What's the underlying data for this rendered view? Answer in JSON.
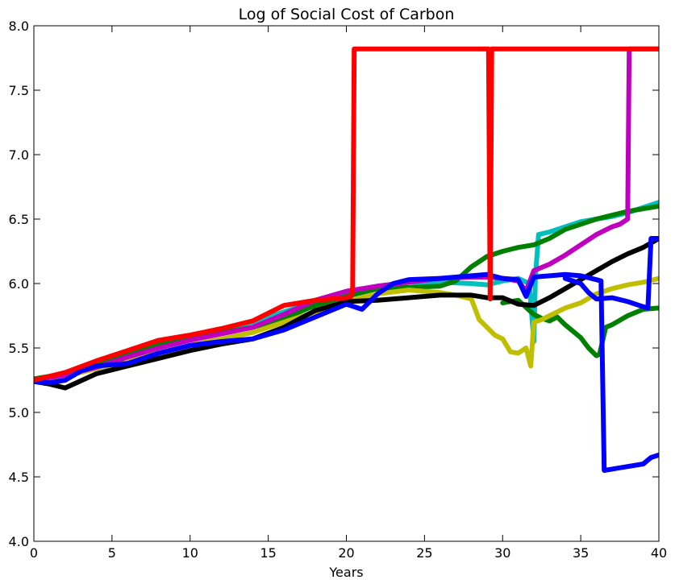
{
  "chart_data": {
    "type": "line",
    "title": "Log of Social Cost of Carbon",
    "xlabel": "Years",
    "ylabel": "",
    "xlim": [
      0,
      40
    ],
    "ylim": [
      4.0,
      8.0
    ],
    "xticks": [
      "0",
      "5",
      "10",
      "15",
      "20",
      "25",
      "30",
      "35",
      "40"
    ],
    "yticks": [
      "4.0",
      "4.5",
      "5.0",
      "5.5",
      "6.0",
      "6.5",
      "7.0",
      "7.5",
      "8.0"
    ],
    "grid": false,
    "series": [
      {
        "color": "#00bfbf",
        "x": [
          0,
          2,
          4,
          6,
          8,
          10,
          12,
          14,
          16,
          18,
          20,
          22,
          24,
          26,
          28,
          29,
          30,
          31,
          31.7,
          32.0,
          32.1,
          32.3,
          33,
          34,
          35,
          36,
          37,
          38,
          39,
          40
        ],
        "y": [
          5.25,
          5.29,
          5.36,
          5.44,
          5.52,
          5.58,
          5.64,
          5.7,
          5.78,
          5.86,
          5.92,
          5.98,
          6.01,
          6.01,
          6.0,
          5.99,
          6.02,
          6.04,
          6.0,
          5.55,
          6.05,
          6.38,
          6.4,
          6.44,
          6.48,
          6.5,
          6.52,
          6.55,
          6.59,
          6.63
        ]
      },
      {
        "color": "#008000",
        "x": [
          0,
          2,
          4,
          6,
          8,
          10,
          12,
          14,
          16,
          18,
          20,
          22,
          24,
          26,
          27,
          28,
          29,
          30,
          31,
          32,
          33,
          34,
          35,
          36,
          37,
          38,
          39,
          40
        ],
        "y": [
          5.26,
          5.3,
          5.37,
          5.46,
          5.53,
          5.58,
          5.62,
          5.66,
          5.73,
          5.83,
          5.9,
          5.96,
          5.97,
          5.98,
          6.02,
          6.13,
          6.21,
          6.25,
          6.28,
          6.3,
          6.35,
          6.42,
          6.46,
          6.5,
          6.53,
          6.56,
          6.58,
          6.6
        ]
      },
      {
        "color": "#008000",
        "x": [
          30,
          31,
          32,
          32.5,
          33,
          33.5,
          34,
          35,
          35.5,
          36,
          36.2,
          36.6,
          37,
          38,
          39,
          40
        ],
        "y": [
          5.85,
          5.87,
          5.76,
          5.73,
          5.71,
          5.74,
          5.68,
          5.58,
          5.5,
          5.44,
          5.45,
          5.66,
          5.68,
          5.75,
          5.8,
          5.81
        ]
      },
      {
        "color": "#bfbf00",
        "x": [
          0,
          2,
          4,
          6,
          8,
          10,
          12,
          14,
          16,
          18,
          20,
          22,
          24,
          26,
          27,
          28,
          28.5,
          29,
          29.5,
          30,
          30.5,
          31,
          31.5,
          31.8,
          32,
          32.5,
          33,
          34,
          35,
          36,
          37,
          38,
          39,
          40
        ],
        "y": [
          5.25,
          5.28,
          5.34,
          5.4,
          5.46,
          5.52,
          5.57,
          5.62,
          5.7,
          5.78,
          5.86,
          5.92,
          5.95,
          5.93,
          5.91,
          5.88,
          5.72,
          5.66,
          5.6,
          5.57,
          5.47,
          5.46,
          5.5,
          5.36,
          5.7,
          5.72,
          5.75,
          5.81,
          5.85,
          5.92,
          5.96,
          5.99,
          6.01,
          6.04
        ]
      },
      {
        "color": "#000000",
        "x": [
          0,
          1,
          2,
          4,
          6,
          8,
          10,
          12,
          14,
          16,
          18,
          20,
          22,
          24,
          26,
          28,
          29,
          30,
          31,
          32,
          33,
          34,
          35,
          36,
          37,
          38,
          39,
          40
        ],
        "y": [
          5.24,
          5.22,
          5.19,
          5.3,
          5.36,
          5.42,
          5.48,
          5.53,
          5.57,
          5.66,
          5.79,
          5.86,
          5.87,
          5.89,
          5.91,
          5.91,
          5.89,
          5.89,
          5.84,
          5.83,
          5.89,
          5.96,
          6.03,
          6.1,
          6.17,
          6.23,
          6.28,
          6.35
        ]
      },
      {
        "color": "#bf00bf",
        "x": [
          0,
          2,
          4,
          6,
          8,
          10,
          12,
          14,
          16,
          18,
          20,
          22,
          24,
          26,
          28,
          29,
          30,
          31,
          31.5,
          32,
          33,
          34,
          35,
          36,
          37,
          37.5,
          38,
          38.1,
          40
        ],
        "y": [
          5.25,
          5.29,
          5.35,
          5.43,
          5.5,
          5.56,
          5.61,
          5.66,
          5.76,
          5.87,
          5.94,
          5.98,
          6.01,
          6.04,
          6.05,
          6.05,
          6.04,
          6.02,
          5.94,
          6.1,
          6.15,
          6.22,
          6.3,
          6.38,
          6.44,
          6.46,
          6.5,
          7.82,
          7.82
        ]
      },
      {
        "color": "#0000ff",
        "x": [
          0,
          1,
          2,
          3,
          4,
          6,
          8,
          10,
          12,
          14,
          16,
          18,
          20,
          21,
          22,
          23,
          24,
          26,
          28,
          29,
          30,
          31,
          31.5,
          32,
          33,
          34,
          35,
          36,
          36.3,
          36.5,
          37,
          38,
          39,
          39.5,
          40
        ],
        "y": [
          5.24,
          5.23,
          5.25,
          5.32,
          5.36,
          5.38,
          5.46,
          5.52,
          5.55,
          5.57,
          5.64,
          5.74,
          5.84,
          5.8,
          5.92,
          6.0,
          6.03,
          6.04,
          6.06,
          6.07,
          6.04,
          6.03,
          5.9,
          6.05,
          6.06,
          6.07,
          6.06,
          6.03,
          6.02,
          4.55,
          4.56,
          4.58,
          4.6,
          4.65,
          4.67
        ]
      },
      {
        "color": "#0000ff",
        "x": [
          34,
          35,
          35.5,
          36,
          37,
          38,
          39,
          39.3,
          39.5,
          40
        ],
        "y": [
          6.04,
          6.0,
          5.93,
          5.88,
          5.89,
          5.86,
          5.82,
          5.81,
          6.35,
          6.35
        ]
      },
      {
        "color": "#ff0000",
        "x": [
          0,
          2,
          4,
          6,
          8,
          10,
          12,
          14,
          16,
          18,
          19,
          20,
          20.3,
          20.4,
          20.5,
          29.1,
          29.2,
          29.3,
          40
        ],
        "y": [
          5.25,
          5.31,
          5.4,
          5.48,
          5.56,
          5.6,
          5.65,
          5.71,
          5.83,
          5.87,
          5.88,
          5.89,
          5.9,
          5.97,
          7.82,
          7.82,
          5.88,
          7.82,
          7.82
        ]
      }
    ]
  }
}
